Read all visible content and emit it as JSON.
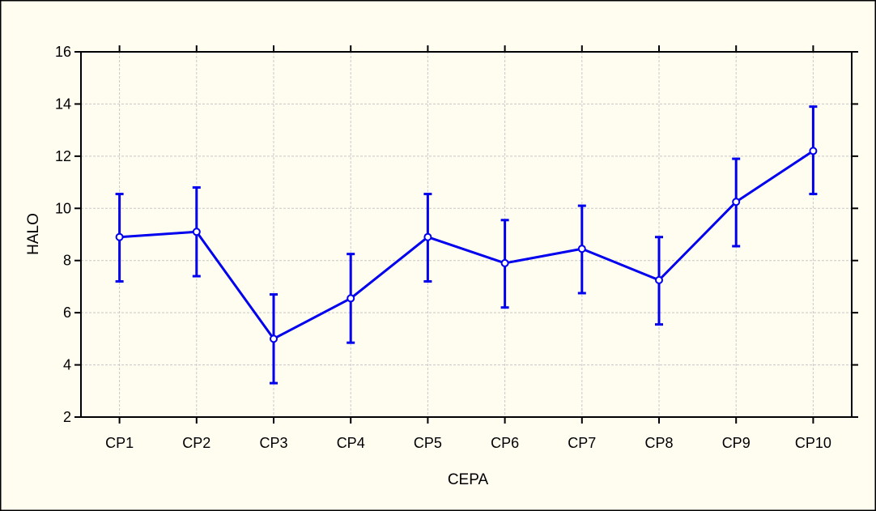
{
  "chart_data": {
    "type": "line",
    "title": "",
    "xlabel": "CEPA",
    "ylabel": "HALO",
    "categories": [
      "CP1",
      "CP2",
      "CP3",
      "CP4",
      "CP5",
      "CP6",
      "CP7",
      "CP8",
      "CP9",
      "CP10"
    ],
    "series": [
      {
        "values": [
          8.9,
          9.1,
          5.0,
          6.55,
          8.9,
          7.9,
          8.45,
          7.25,
          10.25,
          12.2
        ],
        "error_lower": [
          7.2,
          7.4,
          3.3,
          4.85,
          7.2,
          6.2,
          6.75,
          5.55,
          8.55,
          10.55
        ],
        "error_upper": [
          10.55,
          10.8,
          6.7,
          8.25,
          10.55,
          9.55,
          10.1,
          8.9,
          11.9,
          13.9
        ],
        "color": "#0000ee"
      }
    ],
    "ylim": [
      2,
      16
    ],
    "yticks": [
      "2",
      "4",
      "6",
      "8",
      "10",
      "12",
      "14",
      "16"
    ],
    "grid": true,
    "legend": "none",
    "background_color": "#fffcf0"
  }
}
